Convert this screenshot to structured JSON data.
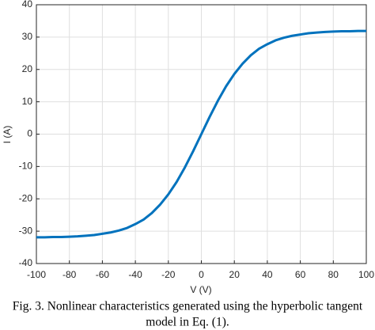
{
  "chart_data": {
    "type": "line",
    "x": [
      -100,
      -95,
      -90,
      -85,
      -80,
      -75,
      -70,
      -65,
      -60,
      -55,
      -50,
      -45,
      -40,
      -35,
      -30,
      -25,
      -20,
      -15,
      -10,
      -5,
      0,
      5,
      10,
      15,
      20,
      25,
      30,
      35,
      40,
      45,
      50,
      55,
      60,
      65,
      70,
      75,
      80,
      85,
      90,
      95,
      100
    ],
    "series": [
      {
        "color": "#0072bd",
        "values": [
          -31.9,
          -31.9,
          -31.8,
          -31.8,
          -31.7,
          -31.6,
          -31.4,
          -31.2,
          -30.8,
          -30.4,
          -29.8,
          -29.0,
          -27.8,
          -26.4,
          -24.4,
          -21.8,
          -18.6,
          -14.8,
          -10.3,
          -5.3,
          0,
          5.3,
          10.3,
          14.8,
          18.6,
          21.8,
          24.4,
          26.4,
          27.8,
          29.0,
          29.8,
          30.4,
          30.8,
          31.2,
          31.4,
          31.6,
          31.7,
          31.8,
          31.8,
          31.9,
          31.9
        ]
      }
    ],
    "xlabel": "V (V)",
    "ylabel": "I (A)",
    "xlim": [
      -100,
      100
    ],
    "ylim": [
      -40,
      40
    ],
    "xticks": [
      -100,
      -80,
      -60,
      -40,
      -20,
      0,
      20,
      40,
      60,
      80,
      100
    ],
    "yticks": [
      -40,
      -30,
      -20,
      -10,
      0,
      10,
      20,
      30,
      40
    ],
    "grid": true,
    "caption": [
      "Fig. 3. Nonlinear characteristics generated using the hyperbolic tangent",
      "model in Eq. (1)."
    ]
  }
}
